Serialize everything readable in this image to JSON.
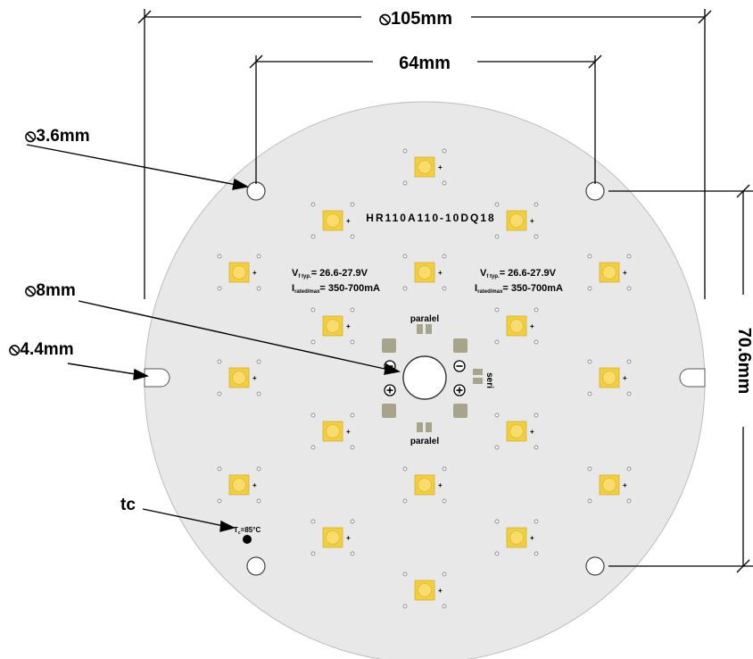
{
  "dimensions": {
    "outer_diameter": "105mm",
    "hole_spacing": "64mm",
    "mount_hole": "3.6mm",
    "center_hole": "8mm",
    "slot": "4.4mm",
    "vertical_spacing": "70.6mm",
    "diameter_symbol": "⦸"
  },
  "labels": {
    "part_number": "HR110A110-10DQ18",
    "voltage_left_prefix": "V",
    "voltage_left_sub": "f typ.",
    "voltage_left_value": "= 26.6-27.9V",
    "current_left_prefix": "I",
    "current_left_sub": "rated/max",
    "current_left_value": "= 350-700mA",
    "voltage_right_prefix": "V",
    "voltage_right_sub": "f typ.",
    "voltage_right_value": "= 26.6-27.9V",
    "current_right_prefix": "I",
    "current_right_sub": "rated/max",
    "current_right_value": "= 350-700mA",
    "paralel_top": "paralel",
    "paralel_bottom": "paralel",
    "seri": "seri",
    "tc_label": "tc",
    "tc_marker_prefix": "T",
    "tc_marker_sub": "c",
    "tc_marker_value": "=85",
    "tc_marker_unit": "°C",
    "led_plus": "+",
    "minus_sign": "−",
    "plus_sign": "+"
  },
  "colors": {
    "board": "#e8e8e8",
    "led_pad": "#f3cf3c",
    "led_lens": "#f8dc6e",
    "solder_pad": "#a8a48c",
    "dimension_line": "#000000"
  }
}
